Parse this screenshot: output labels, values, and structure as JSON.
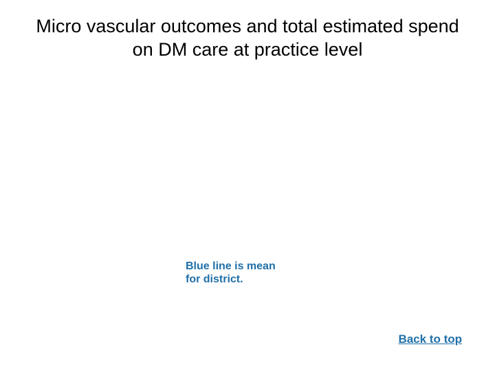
{
  "title": "Micro vascular outcomes and total estimated spend on DM care at practice level",
  "note_line1": "Blue line is mean",
  "note_line2": "for district.",
  "backlink_label": "Back to top",
  "colors": {
    "background": "#ffffff",
    "title_text": "#000000",
    "accent_text": "#1f6fa8"
  },
  "typography": {
    "title_fontsize": 27,
    "note_fontsize": 16,
    "backlink_fontsize": 17,
    "note_fontweight": "bold",
    "backlink_fontweight": "bold"
  }
}
